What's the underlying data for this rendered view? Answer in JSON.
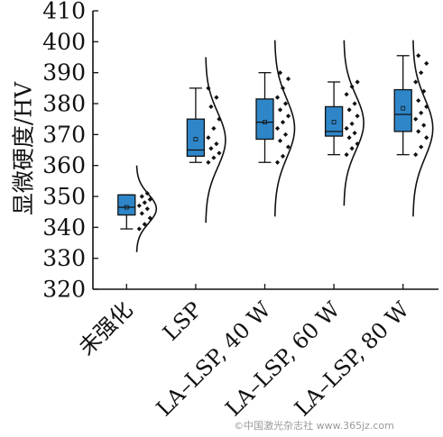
{
  "chart_data": {
    "type": "box",
    "ylabel": "显微硬度/HV",
    "xlabel": "",
    "ylim": [
      320,
      410
    ],
    "yticks": [
      320,
      330,
      340,
      350,
      360,
      370,
      380,
      390,
      400,
      410
    ],
    "categories": [
      "未强化",
      "LSP",
      "LA–LSP, 40 W",
      "LA–LSP, 60 W",
      "LA–LSP, 80 W"
    ],
    "box_color": "#2e86c9",
    "grid": false,
    "boxes": [
      {
        "category": "未强化",
        "whisker_low": 339.5,
        "q1": 344,
        "median": 346.5,
        "mean": 346.5,
        "q3": 350.5,
        "whisker_high": 350.5,
        "points": [
          339.5,
          341,
          343,
          344.5,
          346,
          347,
          348,
          349,
          350,
          351
        ],
        "curve_range": [
          332,
          360
        ]
      },
      {
        "category": "LSP",
        "whisker_low": 361,
        "q1": 363,
        "median": 365,
        "mean": 368.5,
        "q3": 375,
        "whisker_high": 385,
        "points": [
          361,
          362.5,
          364,
          365.5,
          367,
          369,
          372,
          375,
          379,
          382,
          385
        ],
        "curve_range": [
          341.5,
          395
        ]
      },
      {
        "category": "LA–LSP, 40 W",
        "whisker_low": 361,
        "q1": 368.5,
        "median": 374,
        "mean": 374,
        "q3": 381.5,
        "whisker_high": 390,
        "points": [
          361,
          363,
          366,
          368,
          370,
          372,
          374,
          376,
          378,
          380,
          382,
          385,
          388,
          390
        ],
        "curve_range": [
          343.5,
          400.5
        ]
      },
      {
        "category": "LA–LSP, 60 W",
        "whisker_low": 363.5,
        "q1": 369.5,
        "median": 371,
        "mean": 374,
        "q3": 379,
        "whisker_high": 387,
        "points": [
          363.5,
          365.5,
          367,
          369,
          370.5,
          372,
          373.5,
          376,
          378,
          380,
          383,
          385.5,
          387
        ],
        "curve_range": [
          347,
          400.5
        ]
      },
      {
        "category": "LA–LSP, 80 W",
        "whisker_low": 363.5,
        "q1": 371,
        "median": 376.5,
        "mean": 378.5,
        "q3": 384.5,
        "whisker_high": 395.5,
        "points": [
          363.5,
          366,
          369,
          371,
          373,
          375,
          377,
          379,
          381,
          384,
          387,
          390,
          393,
          395.5
        ],
        "curve_range": [
          343.5,
          400.5
        ]
      }
    ]
  },
  "watermark": {
    "text": "©中国激光杂志社 www.365jz.com"
  }
}
